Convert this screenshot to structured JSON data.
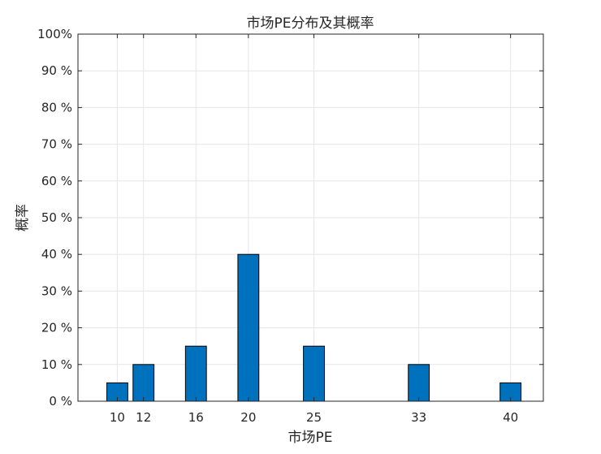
{
  "chart_data": {
    "type": "bar",
    "title": "市场PE分布及其概率",
    "xlabel": "市场PE",
    "ylabel": "概率",
    "x": [
      10,
      12,
      16,
      20,
      25,
      33,
      40
    ],
    "categories": [
      "10",
      "12",
      "16",
      "20",
      "25",
      "33",
      "40"
    ],
    "values": [
      5,
      10,
      15,
      40,
      15,
      10,
      5
    ],
    "value_unit": "%",
    "xlim": [
      7,
      42.5
    ],
    "ylim": [
      0,
      100
    ],
    "yticks": [
      0,
      10,
      20,
      30,
      40,
      50,
      60,
      70,
      80,
      90,
      100
    ],
    "ytick_labels": [
      "0 %",
      "10 %",
      "20 %",
      "30 %",
      "40 %",
      "50 %",
      "60 %",
      "70 %",
      "80 %",
      "90 %",
      "100%"
    ],
    "xticks": [
      10,
      12,
      16,
      20,
      25,
      33,
      40
    ],
    "xtick_labels": [
      "10",
      "12",
      "16",
      "20",
      "25",
      "33",
      "40"
    ],
    "grid": true,
    "bar_color": "#0072BD"
  }
}
